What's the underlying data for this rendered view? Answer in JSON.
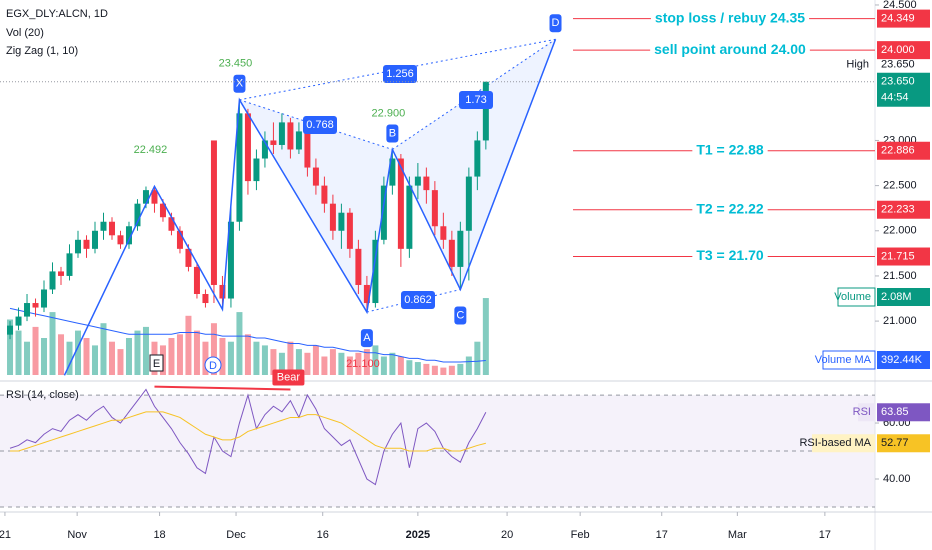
{
  "chart_data": {
    "type": "candlestick",
    "title": "EGX_DLY:ALCN, 1D",
    "indicators": [
      "Vol (20)",
      "Zig Zag (1, 10)"
    ],
    "xlim": [
      -1.18,
      101.8
    ],
    "xticks": [
      {
        "value": -0.6,
        "label": "21"
      },
      {
        "value": 7.9,
        "label": "Nov"
      },
      {
        "value": 17.6,
        "label": "18"
      },
      {
        "value": 26.6,
        "label": "Dec"
      },
      {
        "value": 36.8,
        "label": "16"
      },
      {
        "value": 48,
        "label": "2025"
      },
      {
        "value": 58.5,
        "label": "20"
      },
      {
        "value": 67.1,
        "label": "Feb"
      },
      {
        "value": 76.7,
        "label": "17"
      },
      {
        "value": 85.6,
        "label": "Mar"
      },
      {
        "value": 95.9,
        "label": "17"
      }
    ],
    "ylim": [
      20.37,
      24.555
    ],
    "yticks": [
      {
        "value": 21,
        "label": "21.000"
      },
      {
        "value": 21.5,
        "label": "21.500"
      },
      {
        "value": 22,
        "label": "22.000"
      },
      {
        "value": 22.5,
        "label": "22.500"
      },
      {
        "value": 23,
        "label": "23.000"
      },
      {
        "value": 24.5,
        "label": "24.500"
      }
    ],
    "up_color": "#089981",
    "down_color": "#f23645",
    "ohlc": [
      [
        20.85,
        21.0,
        20.8,
        20.95
      ],
      [
        20.95,
        21.15,
        20.9,
        21.05
      ],
      [
        21.05,
        21.3,
        21.0,
        21.2
      ],
      [
        21.2,
        21.25,
        21.05,
        21.15
      ],
      [
        21.15,
        21.45,
        21.1,
        21.35
      ],
      [
        21.35,
        21.65,
        21.3,
        21.55
      ],
      [
        21.55,
        21.6,
        21.4,
        21.5
      ],
      [
        21.5,
        21.85,
        21.45,
        21.75
      ],
      [
        21.75,
        22.0,
        21.7,
        21.9
      ],
      [
        21.9,
        21.95,
        21.7,
        21.8
      ],
      [
        21.8,
        22.1,
        21.75,
        22.0
      ],
      [
        22.0,
        22.2,
        21.9,
        22.1
      ],
      [
        22.1,
        22.15,
        21.9,
        21.95
      ],
      [
        21.95,
        22.0,
        21.8,
        21.85
      ],
      [
        21.85,
        22.1,
        21.8,
        22.05
      ],
      [
        22.05,
        22.35,
        22.0,
        22.3
      ],
      [
        22.3,
        22.49,
        22.25,
        22.45
      ],
      [
        22.45,
        22.49,
        22.2,
        22.3
      ],
      [
        22.3,
        22.35,
        22.1,
        22.15
      ],
      [
        22.15,
        22.2,
        21.95,
        22.0
      ],
      [
        22.0,
        22.05,
        21.75,
        21.8
      ],
      [
        21.8,
        21.85,
        21.55,
        21.6
      ],
      [
        21.6,
        21.65,
        21.25,
        21.3
      ],
      [
        21.3,
        21.35,
        21.15,
        21.2
      ],
      [
        23.0,
        23.0,
        21.2,
        21.4
      ],
      [
        21.4,
        21.5,
        21.13,
        21.25
      ],
      [
        21.25,
        22.3,
        21.15,
        22.1
      ],
      [
        22.1,
        23.45,
        22.0,
        23.3
      ],
      [
        23.3,
        23.35,
        22.4,
        22.55
      ],
      [
        22.55,
        22.9,
        22.45,
        22.8
      ],
      [
        22.8,
        23.1,
        22.7,
        23.0
      ],
      [
        23.0,
        23.2,
        22.85,
        22.95
      ],
      [
        22.95,
        23.3,
        22.9,
        23.2
      ],
      [
        23.2,
        23.25,
        22.8,
        22.9
      ],
      [
        22.9,
        23.2,
        22.85,
        23.1
      ],
      [
        23.1,
        23.15,
        22.6,
        22.7
      ],
      [
        22.7,
        22.8,
        22.4,
        22.5
      ],
      [
        22.5,
        22.6,
        22.2,
        22.3
      ],
      [
        22.3,
        22.4,
        21.9,
        22.0
      ],
      [
        22.0,
        22.3,
        21.8,
        22.2
      ],
      [
        22.2,
        22.25,
        21.7,
        21.8
      ],
      [
        21.8,
        21.9,
        21.3,
        21.4
      ],
      [
        21.4,
        21.5,
        21.1,
        21.2
      ],
      [
        21.2,
        22.0,
        21.15,
        21.9
      ],
      [
        21.9,
        22.6,
        21.85,
        22.5
      ],
      [
        22.5,
        22.9,
        22.4,
        22.8
      ],
      [
        22.8,
        22.85,
        21.6,
        21.8
      ],
      [
        21.8,
        22.6,
        21.7,
        22.5
      ],
      [
        22.5,
        22.75,
        22.35,
        22.6
      ],
      [
        22.6,
        22.7,
        22.3,
        22.45
      ],
      [
        22.45,
        22.55,
        21.95,
        22.05
      ],
      [
        22.05,
        22.2,
        21.8,
        21.9
      ],
      [
        21.9,
        22.0,
        21.5,
        21.6
      ],
      [
        21.6,
        22.1,
        21.35,
        22.0
      ],
      [
        22.0,
        22.7,
        21.45,
        22.6
      ],
      [
        22.6,
        23.1,
        22.45,
        23.0
      ],
      [
        23.0,
        23.65,
        22.9,
        23.65
      ]
    ],
    "volume": [
      1500,
      1200,
      900,
      1300,
      1000,
      1700,
      1100,
      900,
      1200,
      1000,
      800,
      1400,
      900,
      700,
      1000,
      1200,
      1300,
      900,
      800,
      1000,
      1100,
      1600,
      1200,
      900,
      1400,
      1000,
      900,
      1700,
      1100,
      900,
      800,
      700,
      600,
      900,
      700,
      600,
      800,
      500,
      700,
      600,
      500,
      600,
      700,
      800,
      500,
      600,
      500,
      400,
      350,
      300,
      250,
      200,
      250,
      300,
      500,
      900,
      2080
    ],
    "volume_ma": [
      1800,
      1750,
      1700,
      1650,
      1600,
      1550,
      1500,
      1450,
      1400,
      1350,
      1300,
      1250,
      1200,
      1150,
      1100,
      1100,
      1100,
      1100,
      1100,
      1100,
      1150,
      1150,
      1150,
      1100,
      1100,
      1050,
      1050,
      1050,
      1050,
      1000,
      1000,
      950,
      900,
      850,
      850,
      800,
      800,
      750,
      750,
      700,
      650,
      650,
      600,
      600,
      550,
      550,
      500,
      450,
      450,
      400,
      400,
      350,
      350,
      350,
      360,
      370,
      392.44
    ],
    "zigzag": {
      "x": [
        6.4,
        17,
        25,
        27,
        42,
        45,
        53,
        64.2
      ],
      "y": [
        20.4,
        22.492,
        21.13,
        23.45,
        21.1,
        22.9,
        21.35,
        24.12
      ],
      "point_labels": [
        null,
        "22.492",
        null,
        "23.450",
        "21.100",
        "22.900",
        null,
        null
      ],
      "letters": [
        null,
        null,
        null,
        "X",
        "A",
        "B",
        "C",
        "D"
      ]
    },
    "ratios": [
      "1.256",
      "0.768",
      "1.73",
      "0.862"
    ],
    "markers": [
      "E",
      "D"
    ],
    "levels": [
      {
        "label": "stop loss / rebuy 24.35",
        "value": 24.349,
        "tag": "24.349"
      },
      {
        "label": "sell point around 24.00",
        "value": 24.0,
        "tag": "24.000"
      },
      {
        "label": "T1 = 22.88",
        "value": 22.886,
        "tag": "22.886"
      },
      {
        "label": "T2 = 22.22",
        "value": 22.233,
        "tag": "22.233"
      },
      {
        "label": "T3 = 21.70",
        "value": 21.715,
        "tag": "21.715"
      }
    ],
    "high": {
      "label": "High",
      "tag": "23.650",
      "value": 23.65
    },
    "last": {
      "tag": "23.650",
      "countdown": "44:54"
    },
    "volume_tags": [
      {
        "name": "Volume",
        "tag": "2.08M"
      },
      {
        "name": "Volume MA",
        "tag": "392.44K"
      }
    ],
    "rsi": {
      "title": "RSI (14, close)",
      "ylim": [
        28.2,
        73.6
      ],
      "yticks": [
        {
          "value": 40,
          "label": "40.00"
        },
        {
          "value": 60,
          "label": "60.00"
        }
      ],
      "bands": [
        70,
        50,
        30
      ],
      "series": [
        {
          "name": "RSI",
          "color": "#7e57c2",
          "values": [
            51,
            52,
            54,
            53,
            56,
            58,
            57,
            61,
            63,
            61,
            64,
            66,
            62,
            60,
            64,
            68,
            72,
            66,
            62,
            58,
            53,
            49,
            44,
            42,
            55,
            50,
            48,
            60,
            70,
            58,
            63,
            66,
            64,
            68,
            62,
            70,
            65,
            58,
            55,
            52,
            54,
            47,
            40,
            38,
            50,
            56,
            60,
            44,
            58,
            60,
            57,
            51,
            48,
            46,
            53,
            58,
            63.85
          ]
        },
        {
          "name": "RSI-based MA",
          "color": "#f7c325",
          "values": [
            50,
            50,
            51,
            52,
            53,
            54,
            55,
            56,
            57,
            58,
            59,
            60,
            61,
            61,
            62,
            63,
            64,
            64,
            64,
            63,
            62,
            60,
            58,
            56,
            55,
            54,
            54,
            55,
            57,
            58,
            59,
            60,
            61,
            62,
            62,
            63,
            63,
            62,
            61,
            60,
            58,
            56,
            54,
            52,
            51,
            51,
            51,
            50,
            50,
            50,
            51,
            51,
            50,
            50,
            51,
            52,
            52.77
          ]
        }
      ],
      "divergence": {
        "label": "Bear",
        "x": [
          17,
          33
        ],
        "y": [
          73,
          72
        ]
      }
    }
  }
}
